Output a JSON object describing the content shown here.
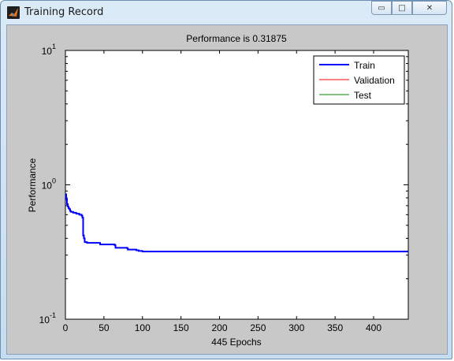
{
  "window": {
    "title": "Training Record",
    "buttons": {
      "minimize": "▭",
      "maximize": "□",
      "close": "✕"
    }
  },
  "chart_data": {
    "type": "line",
    "title": "Performance is 0.31875",
    "xlabel": "445 Epochs",
    "ylabel": "Performance",
    "y_scale": "log",
    "xlim": [
      0,
      445
    ],
    "ylim": [
      0.1,
      10
    ],
    "x_ticks": [
      0,
      50,
      100,
      150,
      200,
      250,
      300,
      350,
      400
    ],
    "y_ticks": [
      {
        "base": "10",
        "exp": "-1",
        "value": 0.1
      },
      {
        "base": "10",
        "exp": "0",
        "value": 1
      },
      {
        "base": "10",
        "exp": "1",
        "value": 10
      }
    ],
    "legend_position": "top-right",
    "series": [
      {
        "name": "Train",
        "color": "#0000ff",
        "x": [
          0,
          1,
          2,
          3,
          4,
          5,
          6,
          7,
          10,
          14,
          18,
          21,
          22,
          23,
          24,
          25,
          28,
          40,
          44,
          45,
          64,
          65,
          70,
          80,
          81,
          92,
          95,
          100,
          445
        ],
        "y": [
          0.85,
          0.78,
          0.72,
          0.69,
          0.67,
          0.66,
          0.64,
          0.63,
          0.62,
          0.61,
          0.6,
          0.59,
          0.57,
          0.42,
          0.4,
          0.375,
          0.37,
          0.37,
          0.37,
          0.36,
          0.355,
          0.34,
          0.34,
          0.338,
          0.33,
          0.326,
          0.322,
          0.31875,
          0.31875
        ]
      },
      {
        "name": "Validation",
        "color": "#ff0000",
        "x": [],
        "y": []
      },
      {
        "name": "Test",
        "color": "#008000",
        "x": [],
        "y": []
      }
    ],
    "grid": false
  }
}
